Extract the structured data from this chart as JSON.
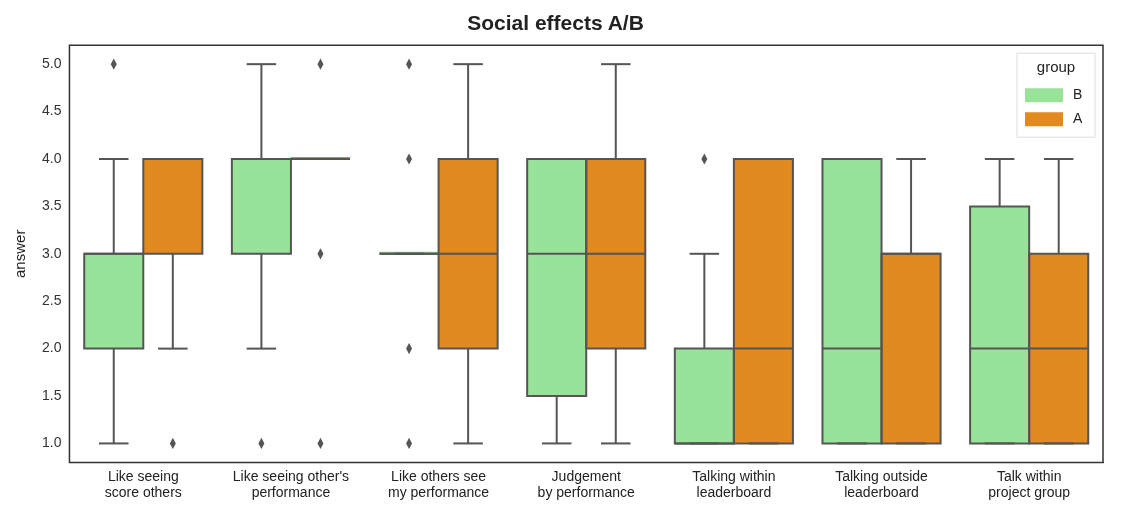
{
  "chart_data": {
    "type": "box",
    "title": "Social effects A/B",
    "ylabel": "answer",
    "legend_title": "group",
    "categories": [
      "Like seeing\nscore others",
      "Like seeing other's\nperformance",
      "Like others see\nmy performance",
      "Judgement\nby performance",
      "Talking within\nleaderboard",
      "Talking outside\nleaderboard",
      "Talk within\nproject group"
    ],
    "series": [
      {
        "name": "B",
        "color": "#98e29a",
        "boxes": [
          {
            "low": 1,
            "q1": 2,
            "median": 3,
            "q3": 3,
            "high": 4,
            "outliers": [
              5
            ]
          },
          {
            "low": 2,
            "q1": 3,
            "median": 4,
            "q3": 4,
            "high": 5,
            "outliers": [
              1
            ]
          },
          {
            "low": 3,
            "q1": 3,
            "median": 3,
            "q3": 3,
            "high": 3,
            "outliers": [
              5,
              4,
              2,
              1
            ]
          },
          {
            "low": 1,
            "q1": 1.5,
            "median": 3,
            "q3": 4,
            "high": 4
          },
          {
            "low": 1,
            "q1": 1,
            "median": 1,
            "q3": 2,
            "high": 3,
            "outliers": [
              4
            ]
          },
          {
            "low": 1,
            "q1": 1,
            "median": 2,
            "q3": 4,
            "high": 4
          },
          {
            "low": 1,
            "q1": 1,
            "median": 2,
            "q3": 3.5,
            "high": 4
          }
        ]
      },
      {
        "name": "A",
        "color": "#e08a20",
        "boxes": [
          {
            "low": 2,
            "q1": 3,
            "median": 4,
            "q3": 4,
            "high": 4,
            "outliers": [
              1
            ]
          },
          {
            "low": 4,
            "q1": 4,
            "median": 4,
            "q3": 4,
            "high": 4,
            "outliers": [
              5,
              3,
              1
            ]
          },
          {
            "low": 1,
            "q1": 2,
            "median": 3,
            "q3": 4,
            "high": 5
          },
          {
            "low": 1,
            "q1": 2,
            "median": 3,
            "q3": 4,
            "high": 5
          },
          {
            "low": 1,
            "q1": 1,
            "median": 2,
            "q3": 4,
            "high": 4
          },
          {
            "low": 1,
            "q1": 1,
            "median": 3,
            "q3": 3,
            "high": 4
          },
          {
            "low": 1,
            "q1": 1,
            "median": 2,
            "q3": 3,
            "high": 4
          }
        ]
      }
    ],
    "ylim": [
      0.8,
      5.2
    ],
    "yticks": [
      {
        "value": 1,
        "label": "1.0"
      },
      {
        "value": 1.5,
        "label": "1.5"
      },
      {
        "value": 2,
        "label": "2.0"
      },
      {
        "value": 2.5,
        "label": "2.5"
      },
      {
        "value": 3,
        "label": "3.0"
      },
      {
        "value": 3.5,
        "label": "3.5"
      },
      {
        "value": 4,
        "label": "4.0"
      },
      {
        "value": 4.5,
        "label": "4.5"
      },
      {
        "value": 5,
        "label": "5.0"
      }
    ],
    "grid": false,
    "legend": "top right",
    "marker": "diamond"
  }
}
